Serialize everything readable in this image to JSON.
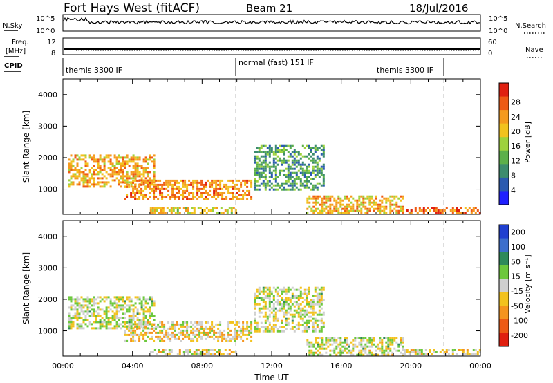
{
  "header": {
    "site": "Fort Hays West (fitACF)",
    "beam": "Beam 21",
    "date": "18/Jul/2016"
  },
  "nsky_panel": {
    "left_label": "N.Sky",
    "right_label": "N.Search",
    "ticks_left": [
      "10^5",
      "10^0"
    ],
    "ticks_right": [
      "10^5",
      "10^0"
    ]
  },
  "freq_panel": {
    "left_label_top": "Freq.",
    "left_label_bottom": "[MHz]",
    "right_label": "Nave",
    "ticks_left": [
      "12",
      "8"
    ],
    "ticks_right": [
      "60",
      "0"
    ]
  },
  "cpid_panel": {
    "label": "CPID",
    "segments": [
      "themis 3300 IF",
      "normal (fast) 151 IF",
      "themis 3300 IF"
    ]
  },
  "colors": {
    "power_scale": [
      "#1f1fff",
      "#2a5ab0",
      "#3c8c6e",
      "#5cb04a",
      "#9ed23c",
      "#f2c21e",
      "#f59a1e",
      "#ee5a14",
      "#e02010"
    ],
    "velocity_scale": [
      "#2040d0",
      "#3c6ecc",
      "#2e8a5a",
      "#6cc83c",
      "#cfcfcf",
      "#f2c21e",
      "#f5941e",
      "#ee5a14",
      "#e02010"
    ]
  },
  "chart_data": [
    {
      "type": "heatmap",
      "title": "Power",
      "xlabel": "Time UT",
      "ylabel": "Slant Range [km]",
      "x_ticks": [
        "00:00",
        "04:00",
        "08:00",
        "12:00",
        "16:00",
        "20:00",
        "00:00"
      ],
      "y_ticks": [
        "1000",
        "2000",
        "3000",
        "4000"
      ],
      "xlim": [
        0,
        24
      ],
      "ylim": [
        200,
        4500
      ],
      "colorbar_label": "Power [dB]",
      "colorbar_ticks": [
        "4",
        "8",
        "12",
        "16",
        "20",
        "24",
        "28"
      ],
      "colorbar_range": [
        0,
        30
      ],
      "regions": [
        {
          "t": [
            0.3,
            5.2
          ],
          "r": [
            1100,
            2100
          ],
          "value": 20
        },
        {
          "t": [
            3.5,
            10.8
          ],
          "r": [
            700,
            1300
          ],
          "value": 22
        },
        {
          "t": [
            5.0,
            10.0
          ],
          "r": [
            250,
            420
          ],
          "value": 18
        },
        {
          "t": [
            11.0,
            15.0
          ],
          "r": [
            1000,
            2400
          ],
          "value": 10
        },
        {
          "t": [
            14.0,
            19.5
          ],
          "r": [
            250,
            800
          ],
          "value": 20
        },
        {
          "t": [
            19.5,
            24.0
          ],
          "r": [
            250,
            420
          ],
          "value": 24
        }
      ]
    },
    {
      "type": "heatmap",
      "title": "Velocity",
      "xlabel": "Time UT",
      "ylabel": "Slant Range [km]",
      "x_ticks": [
        "00:00",
        "04:00",
        "08:00",
        "12:00",
        "16:00",
        "20:00",
        "00:00"
      ],
      "y_ticks": [
        "1000",
        "2000",
        "3000",
        "4000"
      ],
      "xlim": [
        0,
        24
      ],
      "ylim": [
        200,
        4500
      ],
      "colorbar_label": "Velocity [m s⁻¹]",
      "colorbar_ticks": [
        "200",
        "100",
        "50",
        "15",
        "-15",
        "-50",
        "-100",
        "-200"
      ],
      "colorbar_range": [
        -250,
        250
      ],
      "regions": [
        {
          "t": [
            0.3,
            5.2
          ],
          "r": [
            1100,
            2100
          ],
          "value": 0
        },
        {
          "t": [
            3.5,
            10.8
          ],
          "r": [
            700,
            1300
          ],
          "value": -40
        },
        {
          "t": [
            5.0,
            10.0
          ],
          "r": [
            250,
            420
          ],
          "value": -30
        },
        {
          "t": [
            11.0,
            15.0
          ],
          "r": [
            1000,
            2400
          ],
          "value": 0
        },
        {
          "t": [
            14.0,
            19.5
          ],
          "r": [
            250,
            800
          ],
          "value": 0
        },
        {
          "t": [
            19.5,
            24.0
          ],
          "r": [
            250,
            420
          ],
          "value": -20
        }
      ]
    }
  ]
}
